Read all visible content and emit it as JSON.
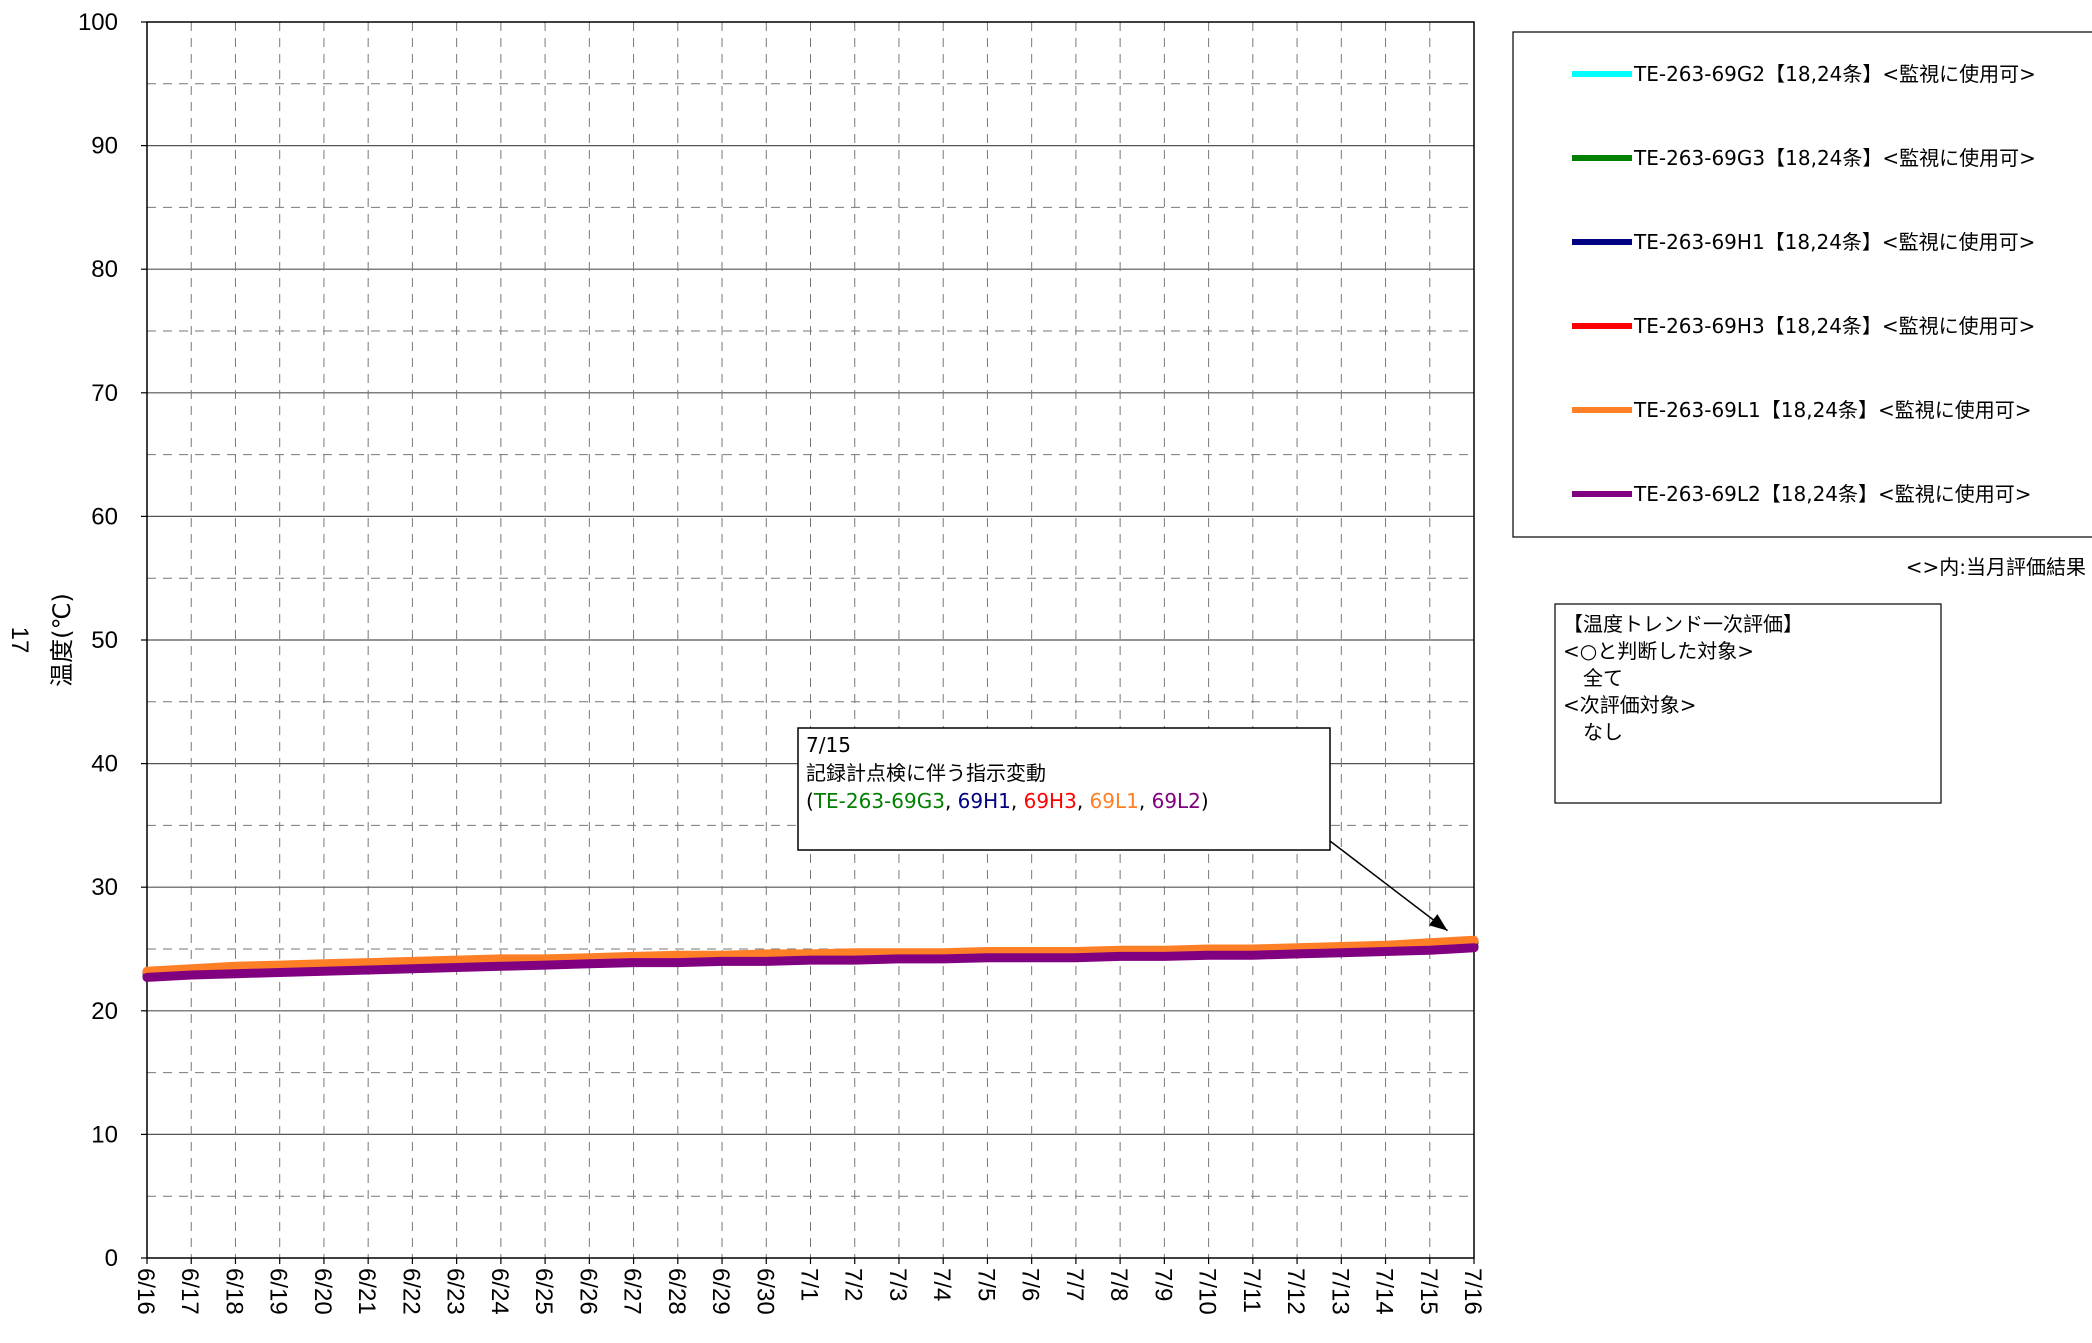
{
  "page_number": "17",
  "chart_data": {
    "type": "line",
    "ylabel": "温度(℃)",
    "ylim": [
      0,
      100
    ],
    "yticks": [
      0,
      10,
      20,
      30,
      40,
      50,
      60,
      70,
      80,
      90,
      100
    ],
    "y_minor_step": 5,
    "grid": true,
    "x_tick_labels": [
      "6/16",
      "6/17",
      "6/18",
      "6/19",
      "6/20",
      "6/21",
      "6/22",
      "6/23",
      "6/24",
      "6/25",
      "6/26",
      "6/27",
      "6/28",
      "6/29",
      "6/30",
      "7/1",
      "7/2",
      "7/3",
      "7/4",
      "7/5",
      "7/6",
      "7/7",
      "7/8",
      "7/9",
      "7/10",
      "7/11",
      "7/12",
      "7/13",
      "7/14",
      "7/15",
      "7/16"
    ],
    "legend_position": "top-right",
    "series": [
      {
        "name": "TE-263-69G2【18,24条】<監視に使用可>",
        "color": "#00ffff",
        "values": [
          23.0,
          23.2,
          23.4,
          23.5,
          23.6,
          23.7,
          23.8,
          23.9,
          24.0,
          24.0,
          24.1,
          24.2,
          24.3,
          24.3,
          24.4,
          24.4,
          24.5,
          24.5,
          24.5,
          24.6,
          24.6,
          24.6,
          24.7,
          24.7,
          24.8,
          24.8,
          24.9,
          25.0,
          25.1,
          25.3,
          25.5
        ]
      },
      {
        "name": "TE-263-69G3【18,24条】<監視に使用可>",
        "color": "#008000",
        "values": [
          23.0,
          23.2,
          23.4,
          23.5,
          23.6,
          23.7,
          23.8,
          23.9,
          24.0,
          24.0,
          24.1,
          24.2,
          24.3,
          24.3,
          24.4,
          24.4,
          24.5,
          24.5,
          24.5,
          24.6,
          24.6,
          24.6,
          24.7,
          24.7,
          24.8,
          24.8,
          24.9,
          25.0,
          25.1,
          25.3,
          25.5
        ]
      },
      {
        "name": "TE-263-69H1【18,24条】<監視に使用可>",
        "color": "#000080",
        "values": [
          22.8,
          23.0,
          23.1,
          23.2,
          23.3,
          23.4,
          23.5,
          23.6,
          23.7,
          23.8,
          23.9,
          24.0,
          24.0,
          24.1,
          24.1,
          24.2,
          24.2,
          24.3,
          24.3,
          24.4,
          24.4,
          24.4,
          24.5,
          24.5,
          24.6,
          24.6,
          24.7,
          24.8,
          24.9,
          25.0,
          25.2
        ]
      },
      {
        "name": "TE-263-69H3【18,24条】<監視に使用可>",
        "color": "#ff0000",
        "values": [
          23.1,
          23.3,
          23.5,
          23.6,
          23.7,
          23.8,
          23.9,
          24.0,
          24.1,
          24.1,
          24.2,
          24.3,
          24.4,
          24.4,
          24.5,
          24.5,
          24.6,
          24.6,
          24.6,
          24.7,
          24.7,
          24.7,
          24.8,
          24.8,
          24.9,
          24.9,
          25.0,
          25.1,
          25.2,
          25.4,
          25.6
        ]
      },
      {
        "name": "TE-263-69L1【18,24条】<監視に使用可>",
        "color": "#ff7f27",
        "values": [
          23.2,
          23.4,
          23.6,
          23.7,
          23.8,
          23.9,
          24.0,
          24.1,
          24.2,
          24.2,
          24.3,
          24.4,
          24.5,
          24.5,
          24.6,
          24.6,
          24.7,
          24.7,
          24.7,
          24.8,
          24.8,
          24.8,
          24.9,
          24.9,
          25.0,
          25.0,
          25.1,
          25.2,
          25.3,
          25.5,
          25.7
        ]
      },
      {
        "name": "TE-263-69L2【18,24条】<監視に使用可>",
        "color": "#800080",
        "values": [
          22.7,
          22.9,
          23.0,
          23.1,
          23.2,
          23.3,
          23.4,
          23.5,
          23.6,
          23.7,
          23.8,
          23.9,
          23.9,
          24.0,
          24.0,
          24.1,
          24.1,
          24.2,
          24.2,
          24.3,
          24.3,
          24.3,
          24.4,
          24.4,
          24.5,
          24.5,
          24.6,
          24.7,
          24.8,
          24.9,
          25.1
        ]
      }
    ],
    "legend_note": "<>内:当月評価結果",
    "evaluation_box": {
      "lines": [
        "【温度トレンド一次評価】",
        "<○と判断した対象>",
        "　全て",
        "<次評価対象>",
        "　なし"
      ]
    },
    "annotation": {
      "date": "7/15",
      "text": "記録計点検に伴う指示変動",
      "open": "(",
      "close": ")",
      "separator": ",",
      "items": [
        {
          "label": "TE-263-69G3",
          "color": "#008000"
        },
        {
          "label": "69H1",
          "color": "#000080"
        },
        {
          "label": "69H3",
          "color": "#ff0000"
        },
        {
          "label": "69L1",
          "color": "#ff7f27"
        },
        {
          "label": "69L2",
          "color": "#800080"
        }
      ],
      "target_index": 29.4,
      "target_value": 26.0
    }
  }
}
